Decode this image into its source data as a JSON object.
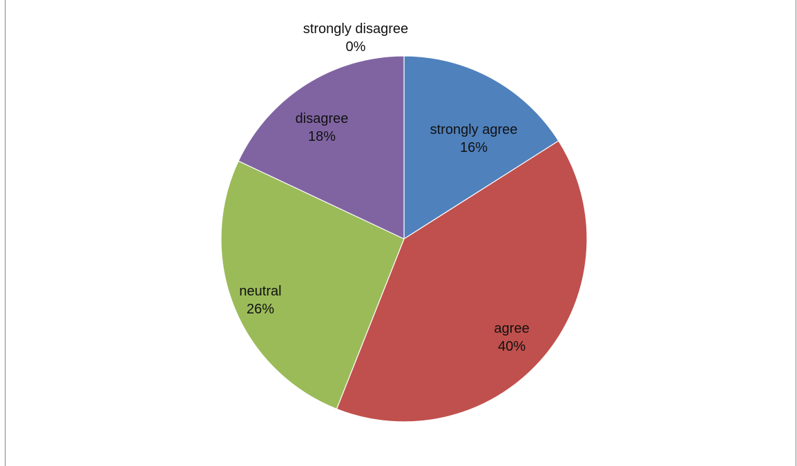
{
  "chart_data": {
    "type": "pie",
    "title": "",
    "slices": [
      {
        "name": "strongly agree",
        "value": 16,
        "label_pct": "16%",
        "color": "#4F81BD"
      },
      {
        "name": "agree",
        "value": 40,
        "label_pct": "40%",
        "color": "#C0504D"
      },
      {
        "name": "neutral",
        "value": 26,
        "label_pct": "26%",
        "color": "#9BBB59"
      },
      {
        "name": "disagree",
        "value": 18,
        "label_pct": "18%",
        "color": "#8064A2"
      },
      {
        "name": "strongly disagree",
        "value": 0,
        "label_pct": "0%",
        "color": "#4BACC6"
      }
    ],
    "start_angle": "12 o'clock",
    "direction": "clockwise",
    "legend": "none",
    "data_labels": "category name and percentage"
  }
}
